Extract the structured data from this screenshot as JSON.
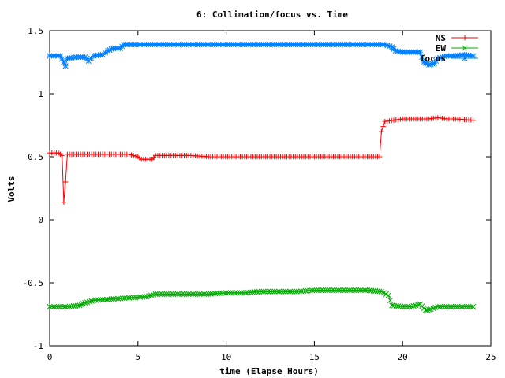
{
  "chart_data": {
    "type": "line",
    "title": "6: Collimation/focus vs. Time",
    "xlabel": "time (Elapse Hours)",
    "ylabel": "Volts",
    "xlim": [
      0,
      25
    ],
    "ylim": [
      -1,
      1.5
    ],
    "x_ticks": [
      0,
      5,
      10,
      15,
      20,
      25
    ],
    "y_ticks": [
      -1,
      -0.5,
      0,
      0.5,
      1,
      1.5
    ],
    "x_tick_labels": [
      "0",
      "5",
      "10",
      "15",
      "20",
      "25"
    ],
    "y_tick_labels": [
      "-1",
      "-0.5",
      "0",
      "0.5",
      "1",
      "1.5"
    ],
    "grid": false,
    "legend_position": "top-right",
    "series": [
      {
        "name": "NS",
        "color": "#ff0000",
        "marker": "plus",
        "points": [
          [
            0.0,
            0.53
          ],
          [
            0.5,
            0.53
          ],
          [
            0.7,
            0.51
          ],
          [
            0.8,
            0.14
          ],
          [
            0.9,
            0.3
          ],
          [
            1.0,
            0.52
          ],
          [
            1.5,
            0.52
          ],
          [
            2.5,
            0.52
          ],
          [
            3.5,
            0.52
          ],
          [
            4.5,
            0.52
          ],
          [
            5.0,
            0.5
          ],
          [
            5.2,
            0.48
          ],
          [
            5.8,
            0.48
          ],
          [
            6.0,
            0.51
          ],
          [
            7.0,
            0.51
          ],
          [
            8.0,
            0.51
          ],
          [
            9.0,
            0.5
          ],
          [
            12.0,
            0.5
          ],
          [
            15.0,
            0.5
          ],
          [
            18.0,
            0.5
          ],
          [
            18.7,
            0.5
          ],
          [
            18.8,
            0.7
          ],
          [
            19.0,
            0.78
          ],
          [
            19.5,
            0.79
          ],
          [
            20.0,
            0.8
          ],
          [
            21.0,
            0.8
          ],
          [
            21.5,
            0.8
          ],
          [
            22.0,
            0.81
          ],
          [
            22.5,
            0.8
          ],
          [
            23.0,
            0.8
          ],
          [
            24.0,
            0.79
          ]
        ]
      },
      {
        "name": "EW",
        "color": "#00aa00",
        "marker": "x",
        "points": [
          [
            0.0,
            -0.69
          ],
          [
            1.0,
            -0.69
          ],
          [
            1.7,
            -0.68
          ],
          [
            2.0,
            -0.66
          ],
          [
            2.5,
            -0.64
          ],
          [
            3.5,
            -0.63
          ],
          [
            4.5,
            -0.62
          ],
          [
            5.5,
            -0.61
          ],
          [
            6.0,
            -0.59
          ],
          [
            7.0,
            -0.59
          ],
          [
            8.0,
            -0.59
          ],
          [
            9.0,
            -0.59
          ],
          [
            10.0,
            -0.58
          ],
          [
            11.0,
            -0.58
          ],
          [
            12.0,
            -0.57
          ],
          [
            13.0,
            -0.57
          ],
          [
            14.0,
            -0.57
          ],
          [
            15.0,
            -0.56
          ],
          [
            16.0,
            -0.56
          ],
          [
            17.0,
            -0.56
          ],
          [
            18.0,
            -0.56
          ],
          [
            18.8,
            -0.57
          ],
          [
            19.2,
            -0.6
          ],
          [
            19.4,
            -0.68
          ],
          [
            20.0,
            -0.69
          ],
          [
            20.5,
            -0.69
          ],
          [
            21.0,
            -0.67
          ],
          [
            21.3,
            -0.72
          ],
          [
            21.6,
            -0.71
          ],
          [
            22.0,
            -0.69
          ],
          [
            23.0,
            -0.69
          ],
          [
            24.0,
            -0.69
          ]
        ]
      },
      {
        "name": "focus",
        "color": "#0080ff",
        "marker": "star",
        "points": [
          [
            0.0,
            1.3
          ],
          [
            0.6,
            1.3
          ],
          [
            0.8,
            1.25
          ],
          [
            0.9,
            1.22
          ],
          [
            1.0,
            1.28
          ],
          [
            1.5,
            1.29
          ],
          [
            2.0,
            1.29
          ],
          [
            2.2,
            1.26
          ],
          [
            2.5,
            1.3
          ],
          [
            3.0,
            1.31
          ],
          [
            3.3,
            1.34
          ],
          [
            3.6,
            1.36
          ],
          [
            4.0,
            1.36
          ],
          [
            4.2,
            1.39
          ],
          [
            5.0,
            1.39
          ],
          [
            8.0,
            1.39
          ],
          [
            12.0,
            1.39
          ],
          [
            16.0,
            1.39
          ],
          [
            19.0,
            1.39
          ],
          [
            19.4,
            1.37
          ],
          [
            19.6,
            1.34
          ],
          [
            20.0,
            1.33
          ],
          [
            21.0,
            1.33
          ],
          [
            21.2,
            1.25
          ],
          [
            21.5,
            1.23
          ],
          [
            21.8,
            1.24
          ],
          [
            22.0,
            1.28
          ],
          [
            22.5,
            1.3
          ],
          [
            23.0,
            1.3
          ],
          [
            23.5,
            1.31
          ],
          [
            24.0,
            1.3
          ]
        ]
      }
    ]
  }
}
